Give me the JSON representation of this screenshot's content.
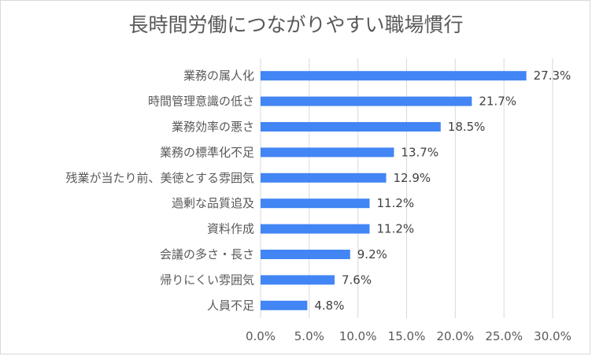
{
  "chart_data": {
    "type": "bar",
    "orientation": "horizontal",
    "title": "長時間労働につながりやすい職場慣行",
    "categories": [
      "業務の属人化",
      "時間管理意識の低さ",
      "業務効率の悪さ",
      "業務の標準化不足",
      "残業が当たり前、美徳とする雰囲気",
      "過剰な品質追及",
      "資料作成",
      "会議の多さ・長さ",
      "帰りにくい雰囲気",
      "人員不足"
    ],
    "values": [
      27.3,
      21.7,
      18.5,
      13.7,
      12.9,
      11.2,
      11.2,
      9.2,
      7.6,
      4.8
    ],
    "value_labels": [
      "27.3%",
      "21.7%",
      "18.5%",
      "13.7%",
      "12.9%",
      "11.2%",
      "11.2%",
      "9.2%",
      "7.6%",
      "4.8%"
    ],
    "xlim": [
      0,
      30
    ],
    "xticks": [
      0,
      5,
      10,
      15,
      20,
      25,
      30
    ],
    "xtick_labels": [
      "0.0%",
      "5.0%",
      "10.0%",
      "15.0%",
      "20.0%",
      "25.0%",
      "30.0%"
    ],
    "xlabel": "",
    "ylabel": "",
    "grid": true,
    "legend": "none",
    "bar_color": "#4285f4",
    "grid_color": "#d9d9d9"
  }
}
